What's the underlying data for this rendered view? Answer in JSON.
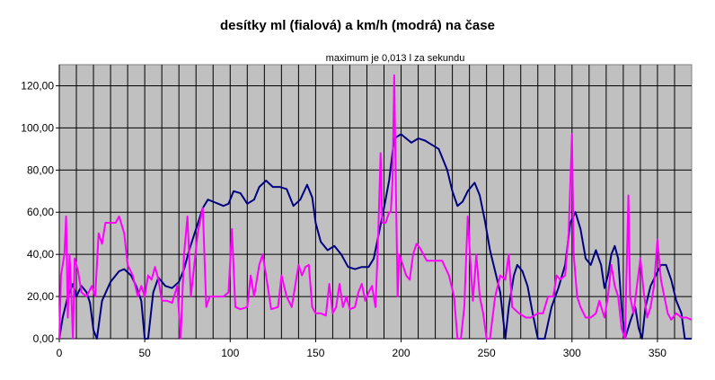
{
  "chart_data": {
    "type": "line",
    "title": "desítky ml (fialová) a km/h (modrá) na čase",
    "subtitle": "maximum je 0,013 l za sekundu",
    "xlabel": "",
    "ylabel": "",
    "xlim": [
      0,
      370
    ],
    "ylim": [
      0,
      130
    ],
    "grid": true,
    "x_ticks": [
      "0",
      "50",
      "100",
      "150",
      "200",
      "250",
      "300",
      "350"
    ],
    "y_ticks": [
      "0,00",
      "20,00",
      "40,00",
      "60,00",
      "80,00",
      "100,00",
      "120,00"
    ],
    "colors": {
      "plot_background": "#c0c0c0",
      "speed": "#000080",
      "consumption": "#ff00ff"
    },
    "series": [
      {
        "color": "#000080",
        "points": [
          [
            0,
            0
          ],
          [
            2,
            10
          ],
          [
            5,
            20
          ],
          [
            8,
            26
          ],
          [
            10,
            20
          ],
          [
            13,
            25
          ],
          [
            16,
            22
          ],
          [
            18,
            17
          ],
          [
            20,
            4
          ],
          [
            22,
            0
          ],
          [
            25,
            18
          ],
          [
            30,
            27
          ],
          [
            35,
            32
          ],
          [
            38,
            33
          ],
          [
            42,
            30
          ],
          [
            45,
            25
          ],
          [
            48,
            18
          ],
          [
            50,
            0
          ],
          [
            52,
            0
          ],
          [
            55,
            22
          ],
          [
            58,
            29
          ],
          [
            62,
            25
          ],
          [
            66,
            24
          ],
          [
            70,
            27
          ],
          [
            73,
            33
          ],
          [
            76,
            42
          ],
          [
            80,
            52
          ],
          [
            84,
            62
          ],
          [
            87,
            66
          ],
          [
            90,
            65
          ],
          [
            93,
            64
          ],
          [
            96,
            63
          ],
          [
            99,
            64
          ],
          [
            102,
            70
          ],
          [
            106,
            69
          ],
          [
            110,
            64
          ],
          [
            114,
            66
          ],
          [
            117,
            72
          ],
          [
            121,
            75
          ],
          [
            125,
            72
          ],
          [
            129,
            72
          ],
          [
            133,
            71
          ],
          [
            137,
            63
          ],
          [
            141,
            66
          ],
          [
            145,
            73
          ],
          [
            148,
            67
          ],
          [
            150,
            55
          ],
          [
            153,
            46
          ],
          [
            157,
            42
          ],
          [
            161,
            44
          ],
          [
            165,
            40
          ],
          [
            169,
            34
          ],
          [
            173,
            33
          ],
          [
            177,
            34
          ],
          [
            181,
            34
          ],
          [
            184,
            38
          ],
          [
            187,
            50
          ],
          [
            190,
            62
          ],
          [
            193,
            75
          ],
          [
            196,
            95
          ],
          [
            200,
            97
          ],
          [
            203,
            95
          ],
          [
            206,
            93
          ],
          [
            210,
            95
          ],
          [
            214,
            94
          ],
          [
            218,
            92
          ],
          [
            222,
            90
          ],
          [
            227,
            80
          ],
          [
            230,
            70
          ],
          [
            233,
            63
          ],
          [
            236,
            65
          ],
          [
            239,
            70
          ],
          [
            243,
            74
          ],
          [
            246,
            68
          ],
          [
            249,
            56
          ],
          [
            252,
            42
          ],
          [
            255,
            32
          ],
          [
            258,
            22
          ],
          [
            261,
            0
          ],
          [
            263,
            15
          ],
          [
            266,
            30
          ],
          [
            268,
            35
          ],
          [
            271,
            32
          ],
          [
            274,
            25
          ],
          [
            277,
            12
          ],
          [
            280,
            0
          ],
          [
            284,
            0
          ],
          [
            288,
            15
          ],
          [
            292,
            24
          ],
          [
            296,
            35
          ],
          [
            299,
            55
          ],
          [
            302,
            60
          ],
          [
            305,
            52
          ],
          [
            308,
            38
          ],
          [
            311,
            35
          ],
          [
            314,
            42
          ],
          [
            317,
            35
          ],
          [
            319,
            24
          ],
          [
            321,
            30
          ],
          [
            323,
            40
          ],
          [
            325,
            44
          ],
          [
            327,
            38
          ],
          [
            329,
            15
          ],
          [
            331,
            0
          ],
          [
            334,
            8
          ],
          [
            337,
            15
          ],
          [
            339,
            5
          ],
          [
            341,
            0
          ],
          [
            343,
            15
          ],
          [
            346,
            25
          ],
          [
            349,
            30
          ],
          [
            352,
            35
          ],
          [
            355,
            35
          ],
          [
            358,
            28
          ],
          [
            361,
            18
          ],
          [
            364,
            12
          ],
          [
            366,
            0
          ],
          [
            370,
            0
          ]
        ]
      },
      {
        "color": "#ff00ff",
        "points": [
          [
            0,
            0
          ],
          [
            1,
            30
          ],
          [
            3,
            40
          ],
          [
            4,
            58
          ],
          [
            5,
            10
          ],
          [
            6,
            40
          ],
          [
            7,
            22
          ],
          [
            8,
            0
          ],
          [
            9,
            38
          ],
          [
            11,
            32
          ],
          [
            13,
            22
          ],
          [
            16,
            20
          ],
          [
            19,
            25
          ],
          [
            21,
            20
          ],
          [
            23,
            50
          ],
          [
            25,
            45
          ],
          [
            27,
            55
          ],
          [
            30,
            55
          ],
          [
            33,
            55
          ],
          [
            35,
            58
          ],
          [
            38,
            50
          ],
          [
            40,
            35
          ],
          [
            43,
            30
          ],
          [
            46,
            20
          ],
          [
            48,
            25
          ],
          [
            50,
            20
          ],
          [
            52,
            30
          ],
          [
            54,
            28
          ],
          [
            56,
            34
          ],
          [
            58,
            28
          ],
          [
            60,
            18
          ],
          [
            63,
            18
          ],
          [
            66,
            17
          ],
          [
            69,
            25
          ],
          [
            71,
            0
          ],
          [
            73,
            40
          ],
          [
            75,
            58
          ],
          [
            77,
            20
          ],
          [
            79,
            35
          ],
          [
            81,
            50
          ],
          [
            84,
            62
          ],
          [
            86,
            15
          ],
          [
            88,
            20
          ],
          [
            92,
            20
          ],
          [
            96,
            20
          ],
          [
            99,
            22
          ],
          [
            101,
            52
          ],
          [
            103,
            15
          ],
          [
            106,
            14
          ],
          [
            110,
            15
          ],
          [
            112,
            30
          ],
          [
            114,
            20
          ],
          [
            117,
            35
          ],
          [
            119,
            40
          ],
          [
            121,
            30
          ],
          [
            124,
            14
          ],
          [
            128,
            15
          ],
          [
            130,
            30
          ],
          [
            133,
            20
          ],
          [
            136,
            15
          ],
          [
            138,
            25
          ],
          [
            140,
            35
          ],
          [
            142,
            30
          ],
          [
            144,
            34
          ],
          [
            146,
            35
          ],
          [
            148,
            15
          ],
          [
            150,
            12
          ],
          [
            153,
            12
          ],
          [
            156,
            11
          ],
          [
            158,
            26
          ],
          [
            160,
            12
          ],
          [
            162,
            15
          ],
          [
            164,
            26
          ],
          [
            166,
            15
          ],
          [
            168,
            20
          ],
          [
            170,
            14
          ],
          [
            173,
            15
          ],
          [
            175,
            22
          ],
          [
            177,
            26
          ],
          [
            179,
            18
          ],
          [
            181,
            22
          ],
          [
            183,
            25
          ],
          [
            185,
            15
          ],
          [
            186,
            35
          ],
          [
            187,
            60
          ],
          [
            188,
            88
          ],
          [
            189,
            55
          ],
          [
            191,
            55
          ],
          [
            193,
            60
          ],
          [
            194,
            60
          ],
          [
            195,
            75
          ],
          [
            196,
            125
          ],
          [
            197,
            70
          ],
          [
            198,
            20
          ],
          [
            199,
            40
          ],
          [
            201,
            35
          ],
          [
            203,
            30
          ],
          [
            205,
            28
          ],
          [
            207,
            40
          ],
          [
            209,
            45
          ],
          [
            211,
            43
          ],
          [
            213,
            40
          ],
          [
            215,
            37
          ],
          [
            220,
            37
          ],
          [
            224,
            37
          ],
          [
            228,
            30
          ],
          [
            231,
            20
          ],
          [
            233,
            0
          ],
          [
            235,
            0
          ],
          [
            237,
            15
          ],
          [
            239,
            58
          ],
          [
            241,
            30
          ],
          [
            242,
            18
          ],
          [
            244,
            40
          ],
          [
            246,
            20
          ],
          [
            248,
            12
          ],
          [
            250,
            0
          ],
          [
            252,
            0
          ],
          [
            255,
            20
          ],
          [
            258,
            30
          ],
          [
            261,
            28
          ],
          [
            263,
            40
          ],
          [
            265,
            15
          ],
          [
            269,
            12
          ],
          [
            273,
            10
          ],
          [
            276,
            10
          ],
          [
            280,
            12
          ],
          [
            283,
            12
          ],
          [
            286,
            20
          ],
          [
            289,
            20
          ],
          [
            291,
            30
          ],
          [
            293,
            28
          ],
          [
            296,
            30
          ],
          [
            298,
            50
          ],
          [
            300,
            97
          ],
          [
            301,
            40
          ],
          [
            303,
            20
          ],
          [
            305,
            15
          ],
          [
            308,
            10
          ],
          [
            311,
            10
          ],
          [
            314,
            12
          ],
          [
            316,
            18
          ],
          [
            319,
            10
          ],
          [
            321,
            20
          ],
          [
            323,
            35
          ],
          [
            325,
            25
          ],
          [
            327,
            20
          ],
          [
            329,
            5
          ],
          [
            331,
            0
          ],
          [
            333,
            68
          ],
          [
            334,
            20
          ],
          [
            336,
            12
          ],
          [
            338,
            25
          ],
          [
            340,
            38
          ],
          [
            342,
            22
          ],
          [
            344,
            10
          ],
          [
            346,
            15
          ],
          [
            348,
            25
          ],
          [
            350,
            47
          ],
          [
            352,
            28
          ],
          [
            354,
            20
          ],
          [
            356,
            12
          ],
          [
            358,
            9
          ],
          [
            361,
            12
          ],
          [
            364,
            10
          ],
          [
            367,
            10
          ],
          [
            370,
            9
          ]
        ]
      }
    ]
  }
}
